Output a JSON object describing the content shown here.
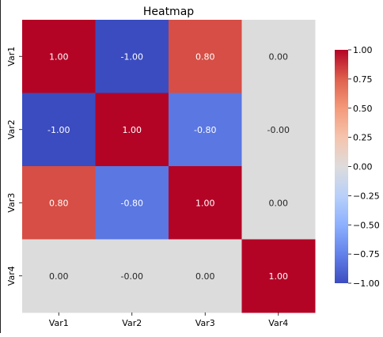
{
  "chart_data": {
    "type": "heatmap",
    "title": "Heatmap",
    "xlabel": "",
    "ylabel": "",
    "x_categories": [
      "Var1",
      "Var2",
      "Var3",
      "Var4"
    ],
    "y_categories": [
      "Var1",
      "Var2",
      "Var3",
      "Var4"
    ],
    "values": [
      [
        1.0,
        -1.0,
        0.8,
        0.0
      ],
      [
        -1.0,
        1.0,
        -0.8,
        -0.0
      ],
      [
        0.8,
        -0.8,
        1.0,
        0.0
      ],
      [
        0.0,
        -0.0,
        0.0,
        1.0
      ]
    ],
    "cell_labels": [
      [
        "1.00",
        "-1.00",
        "0.80",
        "0.00"
      ],
      [
        "-1.00",
        "1.00",
        "-0.80",
        "-0.00"
      ],
      [
        "0.80",
        "-0.80",
        "1.00",
        "0.00"
      ],
      [
        "0.00",
        "-0.00",
        "0.00",
        "1.00"
      ]
    ],
    "colormap": "coolwarm",
    "vmin": -1.0,
    "vmax": 1.0,
    "colorbar": {
      "ticks": [
        1.0,
        0.75,
        0.5,
        0.25,
        0.0,
        -0.25,
        -0.5,
        -0.75,
        -1.0
      ],
      "tick_labels": [
        "1.00",
        "0.75",
        "0.50",
        "0.25",
        "0.00",
        "−0.25",
        "−0.50",
        "−0.75",
        "−1.00"
      ],
      "placement": "right"
    },
    "text_colors": {
      "on_dark": "#ffffff",
      "on_light": "#262626"
    }
  }
}
